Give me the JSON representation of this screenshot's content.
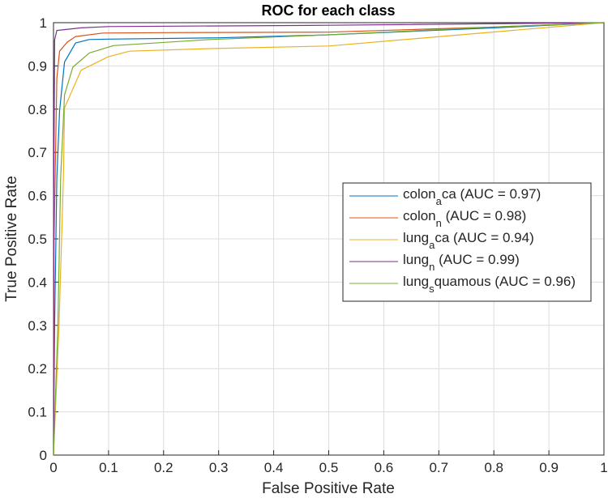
{
  "chart_data": {
    "type": "line",
    "title": "ROC for each class",
    "xlabel": "False Positive Rate",
    "ylabel": "True Positive Rate",
    "xlim": [
      0,
      1
    ],
    "ylim": [
      0,
      1
    ],
    "xticks": [
      "0",
      "0.1",
      "0.2",
      "0.3",
      "0.4",
      "0.5",
      "0.6",
      "0.7",
      "0.8",
      "0.9",
      "1"
    ],
    "yticks": [
      "0",
      "0.1",
      "0.2",
      "0.3",
      "0.4",
      "0.5",
      "0.6",
      "0.7",
      "0.8",
      "0.9",
      "1"
    ],
    "grid": true,
    "legend_position": "center-right",
    "series": [
      {
        "name": "colon_a ca (AUC = 0.97)",
        "label_base": "colon",
        "label_sub": "a",
        "label_rest": "ca (AUC = 0.97)",
        "color": "#0072BD",
        "points": [
          [
            0,
            0
          ],
          [
            0.002,
            0.3
          ],
          [
            0.006,
            0.64
          ],
          [
            0.011,
            0.796
          ],
          [
            0.02,
            0.909
          ],
          [
            0.04,
            0.953
          ],
          [
            0.065,
            0.961
          ],
          [
            0.1,
            0.962
          ],
          [
            0.3,
            0.965
          ],
          [
            0.5,
            0.972
          ],
          [
            0.8,
            0.988
          ],
          [
            1,
            1
          ]
        ]
      },
      {
        "name": "colon_n (AUC = 0.98)",
        "label_base": "colon",
        "label_sub": "n",
        "label_rest": " (AUC = 0.98)",
        "color": "#D95319",
        "points": [
          [
            0,
            0
          ],
          [
            0.001,
            0.5
          ],
          [
            0.006,
            0.871
          ],
          [
            0.011,
            0.934
          ],
          [
            0.025,
            0.955
          ],
          [
            0.04,
            0.968
          ],
          [
            0.09,
            0.976
          ],
          [
            0.2,
            0.977
          ],
          [
            0.5,
            0.978
          ],
          [
            0.8,
            0.99
          ],
          [
            1,
            1
          ]
        ]
      },
      {
        "name": "lung_a ca (AUC = 0.94)",
        "label_base": "lung",
        "label_sub": "a",
        "label_rest": "ca (AUC = 0.94)",
        "color": "#EDB120",
        "points": [
          [
            0,
            0
          ],
          [
            0.01,
            0.3
          ],
          [
            0.018,
            0.64
          ],
          [
            0.02,
            0.803
          ],
          [
            0.05,
            0.89
          ],
          [
            0.099,
            0.921
          ],
          [
            0.138,
            0.934
          ],
          [
            0.285,
            0.94
          ],
          [
            0.5,
            0.946
          ],
          [
            0.75,
            0.973
          ],
          [
            1,
            1
          ]
        ]
      },
      {
        "name": "lung_n (AUC = 0.99)",
        "label_base": "lung",
        "label_sub": "n",
        "label_rest": " (AUC = 0.99)",
        "color": "#7E2F8E",
        "points": [
          [
            0,
            0
          ],
          [
            0.0005,
            0.6
          ],
          [
            0.002,
            0.96
          ],
          [
            0.006,
            0.982
          ],
          [
            0.05,
            0.988
          ],
          [
            0.1,
            0.991
          ],
          [
            0.5,
            0.994
          ],
          [
            1,
            1
          ]
        ]
      },
      {
        "name": "lung_s quamous (AUC = 0.96)",
        "label_base": "lung",
        "label_sub": "s",
        "label_rest": "quamous (AUC = 0.96)",
        "color": "#77AC30",
        "points": [
          [
            0,
            0
          ],
          [
            0.008,
            0.3
          ],
          [
            0.013,
            0.64
          ],
          [
            0.02,
            0.833
          ],
          [
            0.035,
            0.897
          ],
          [
            0.065,
            0.93
          ],
          [
            0.109,
            0.947
          ],
          [
            0.285,
            0.961
          ],
          [
            0.5,
            0.972
          ],
          [
            0.8,
            0.99
          ],
          [
            1,
            1
          ]
        ]
      }
    ]
  }
}
